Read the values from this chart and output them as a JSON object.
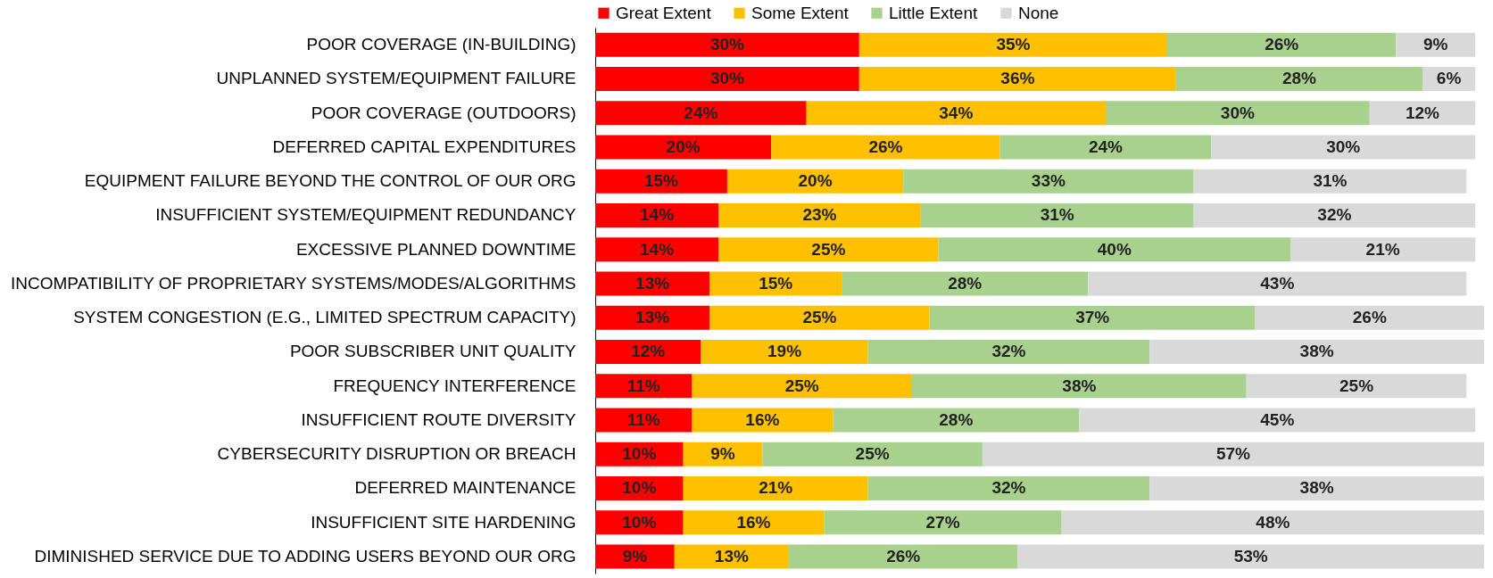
{
  "chart_data": {
    "type": "bar",
    "orientation": "horizontal",
    "stacked": true,
    "legend": "top",
    "tick_labels": "y",
    "categories": [
      "POOR COVERAGE (IN-BUILDING)",
      "UNPLANNED SYSTEM/EQUIPMENT FAILURE",
      "POOR COVERAGE (OUTDOORS)",
      "DEFERRED CAPITAL EXPENDITURES",
      "EQUIPMENT FAILURE BEYOND THE CONTROL OF OUR ORG",
      "INSUFFICIENT SYSTEM/EQUIPMENT REDUNDANCY",
      "EXCESSIVE PLANNED DOWNTIME",
      "INCOMPATIBILITY OF PROPRIETARY SYSTEMS/MODES/ALGORITHMS",
      "SYSTEM CONGESTION (E.G., LIMITED SPECTRUM CAPACITY)",
      "POOR SUBSCRIBER UNIT QUALITY",
      "FREQUENCY INTERFERENCE",
      "INSUFFICIENT ROUTE DIVERSITY",
      "CYBERSECURITY DISRUPTION OR BREACH",
      "DEFERRED MAINTENANCE",
      "INSUFFICIENT SITE HARDENING",
      "DIMINISHED SERVICE DUE TO ADDING USERS BEYOND OUR ORG"
    ],
    "series": [
      {
        "name": "Great Extent",
        "color": "#ff0000",
        "values": [
          30,
          30,
          24,
          20,
          15,
          14,
          14,
          13,
          13,
          12,
          11,
          11,
          10,
          10,
          10,
          9
        ],
        "value_labels": [
          "30%",
          "30%",
          "24%",
          "20%",
          "15%",
          "14%",
          "14%",
          "13%",
          "13%",
          "12%",
          "11%",
          "11%",
          "10%",
          "10%",
          "10%",
          "9%"
        ]
      },
      {
        "name": "Some Extent",
        "color": "#ffc000",
        "values": [
          35,
          36,
          34,
          26,
          20,
          23,
          25,
          15,
          25,
          19,
          25,
          16,
          9,
          21,
          16,
          13
        ],
        "value_labels": [
          "35%",
          "36%",
          "34%",
          "26%",
          "20%",
          "23%",
          "25%",
          "15%",
          "25%",
          "19%",
          "25%",
          "16%",
          "9%",
          "21%",
          "16%",
          "13%"
        ]
      },
      {
        "name": "Little Extent",
        "color": "#a9d18e",
        "values": [
          26,
          28,
          30,
          24,
          33,
          31,
          40,
          28,
          37,
          32,
          38,
          28,
          25,
          32,
          27,
          26
        ],
        "value_labels": [
          "26%",
          "28%",
          "30%",
          "24%",
          "33%",
          "31%",
          "40%",
          "28%",
          "37%",
          "32%",
          "38%",
          "28%",
          "25%",
          "32%",
          "27%",
          "26%"
        ]
      },
      {
        "name": "None",
        "color": "#d9d9d9",
        "values": [
          9,
          6,
          12,
          30,
          31,
          32,
          21,
          43,
          26,
          38,
          25,
          45,
          57,
          38,
          48,
          53
        ],
        "value_labels": [
          "9%",
          "6%",
          "12%",
          "30%",
          "31%",
          "32%",
          "21%",
          "43%",
          "26%",
          "38%",
          "25%",
          "45%",
          "57%",
          "38%",
          "48%",
          "53%"
        ]
      }
    ]
  }
}
